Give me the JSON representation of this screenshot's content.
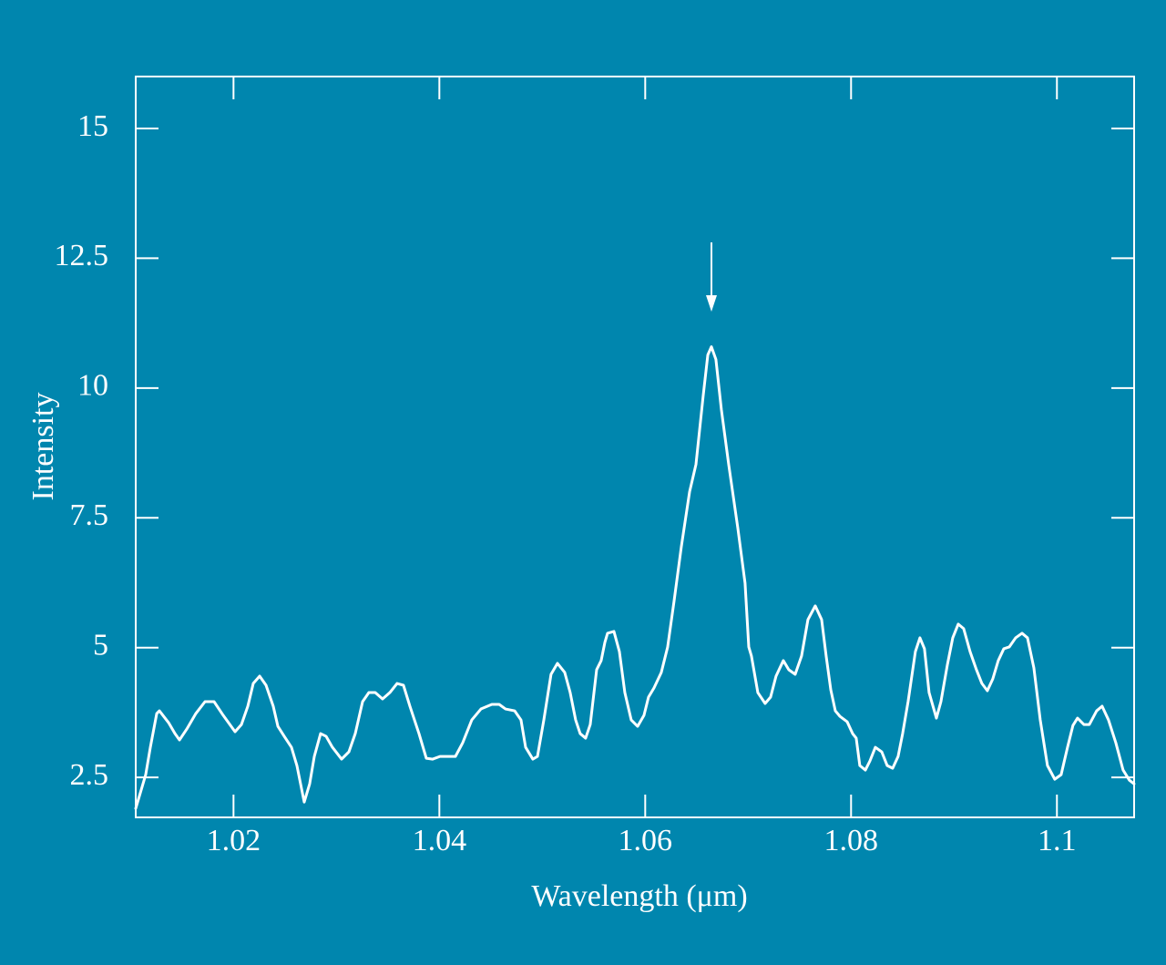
{
  "chart_data": {
    "type": "line",
    "xlabel": "Wavelength (μm)",
    "ylabel": "Intensity",
    "xlim": [
      1.0105,
      1.1075
    ],
    "ylim": [
      1.73,
      16
    ],
    "xticks": [
      1.02,
      1.04,
      1.06,
      1.08,
      1.1
    ],
    "yticks": [
      2.5,
      5,
      7.5,
      10,
      12.5,
      15
    ],
    "color": "#ffffff",
    "x": [
      1.0105,
      1.01147,
      1.01192,
      1.01254,
      1.0128,
      1.01369,
      1.01431,
      1.01475,
      1.01546,
      1.01634,
      1.01723,
      1.01811,
      1.019,
      1.02015,
      1.02077,
      1.02139,
      1.02192,
      1.02254,
      1.02316,
      1.02386,
      1.02431,
      1.02493,
      1.02563,
      1.02616,
      1.02687,
      1.0274,
      1.02785,
      1.02846,
      1.029,
      1.02961,
      1.0305,
      1.03121,
      1.03183,
      1.03254,
      1.03315,
      1.03377,
      1.03448,
      1.03519,
      1.03589,
      1.03651,
      1.03714,
      1.03802,
      1.03873,
      1.03935,
      1.04006,
      1.04085,
      1.04156,
      1.04227,
      1.04315,
      1.04404,
      1.0451,
      1.04581,
      1.04643,
      1.04731,
      1.04793,
      1.04838,
      1.04908,
      1.04953,
      1.05015,
      1.05085,
      1.05147,
      1.05218,
      1.05271,
      1.05324,
      1.05368,
      1.05421,
      1.05466,
      1.05528,
      1.05572,
      1.05608,
      1.05634,
      1.05696,
      1.05749,
      1.05802,
      1.05864,
      1.05926,
      1.05988,
      1.06032,
      1.06085,
      1.06156,
      1.06218,
      1.0628,
      1.06351,
      1.06431,
      1.06493,
      1.06563,
      1.06608,
      1.06643,
      1.06687,
      1.0674,
      1.06811,
      1.069,
      1.0697,
      1.07006,
      1.07032,
      1.07094,
      1.07165,
      1.07218,
      1.07271,
      1.07342,
      1.07395,
      1.07457,
      1.07519,
      1.07581,
      1.07652,
      1.07714,
      1.07758,
      1.07803,
      1.07847,
      1.07891,
      1.07962,
      1.08015,
      1.0805,
      1.08085,
      1.08139,
      1.08183,
      1.08236,
      1.08298,
      1.08351,
      1.08404,
      1.08457,
      1.08501,
      1.08554,
      1.08625,
      1.08669,
      1.08713,
      1.08758,
      1.08829,
      1.08873,
      1.08935,
      1.08988,
      1.09041,
      1.09094,
      1.09156,
      1.09218,
      1.09271,
      1.09324,
      1.09377,
      1.0943,
      1.09484,
      1.09537,
      1.09599,
      1.09661,
      1.09714,
      1.09776,
      1.09838,
      1.09908,
      1.09979,
      1.10041,
      1.10103,
      1.10156,
      1.102,
      1.10262,
      1.10315,
      1.10386,
      1.10439,
      1.10501,
      1.10572,
      1.10643,
      1.10704,
      1.10749
    ],
    "values": [
      1.902,
      2.553,
      3.08,
      3.73,
      3.783,
      3.555,
      3.344,
      3.221,
      3.431,
      3.73,
      3.959,
      3.959,
      3.695,
      3.379,
      3.519,
      3.871,
      4.31,
      4.451,
      4.275,
      3.871,
      3.484,
      3.291,
      3.08,
      2.728,
      2.025,
      2.377,
      2.904,
      3.344,
      3.291,
      3.08,
      2.852,
      2.992,
      3.344,
      3.959,
      4.134,
      4.134,
      4.011,
      4.134,
      4.31,
      4.275,
      3.871,
      3.344,
      2.869,
      2.852,
      2.904,
      2.904,
      2.904,
      3.168,
      3.607,
      3.818,
      3.906,
      3.906,
      3.818,
      3.783,
      3.607,
      3.08,
      2.852,
      2.904,
      3.607,
      4.486,
      4.697,
      4.521,
      4.134,
      3.607,
      3.344,
      3.256,
      3.519,
      4.574,
      4.75,
      5.101,
      5.277,
      5.312,
      4.925,
      4.134,
      3.607,
      3.484,
      3.695,
      4.047,
      4.222,
      4.521,
      5.013,
      5.892,
      6.946,
      8.001,
      8.528,
      9.846,
      10.637,
      10.795,
      10.549,
      9.583,
      8.528,
      7.298,
      6.243,
      5.013,
      4.838,
      4.134,
      3.924,
      4.047,
      4.451,
      4.75,
      4.574,
      4.486,
      4.838,
      5.54,
      5.804,
      5.54,
      4.838,
      4.187,
      3.783,
      3.678,
      3.572,
      3.344,
      3.256,
      2.728,
      2.641,
      2.816,
      3.08,
      2.992,
      2.728,
      2.676,
      2.904,
      3.344,
      3.959,
      4.925,
      5.189,
      4.978,
      4.134,
      3.642,
      3.959,
      4.662,
      5.189,
      5.453,
      5.365,
      4.925,
      4.574,
      4.31,
      4.17,
      4.398,
      4.75,
      4.978,
      5.013,
      5.189,
      5.277,
      5.189,
      4.609,
      3.607,
      2.728,
      2.465,
      2.553,
      3.08,
      3.502,
      3.642,
      3.519,
      3.519,
      3.783,
      3.871,
      3.607,
      3.168,
      2.641,
      2.447,
      2.377
    ]
  }
}
